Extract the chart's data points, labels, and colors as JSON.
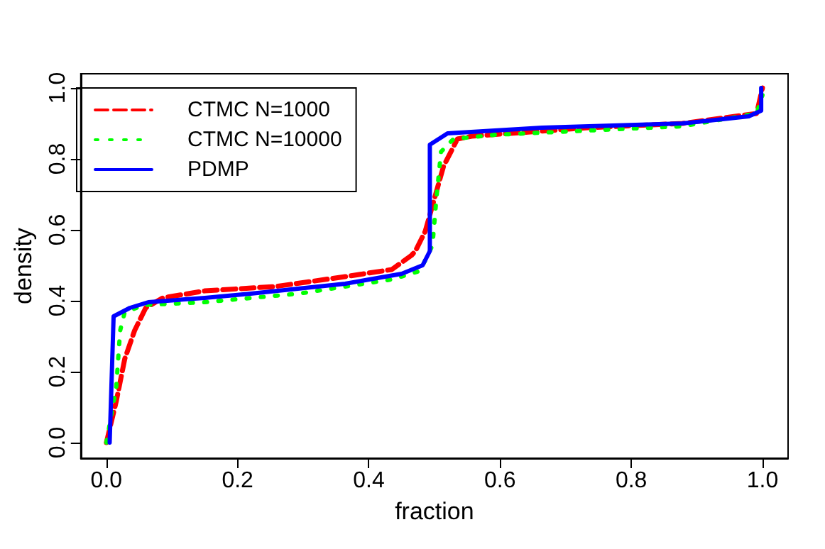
{
  "chart_data": {
    "type": "line",
    "xlabel": "fraction",
    "ylabel": "density",
    "xlim": [
      -0.039,
      1.039
    ],
    "ylim": [
      -0.044,
      1.04
    ],
    "xticks": [
      {
        "value": 0,
        "label": "0.0"
      },
      {
        "value": 0.2,
        "label": "0.2"
      },
      {
        "value": 0.4,
        "label": "0.4"
      },
      {
        "value": 0.6,
        "label": "0.6"
      },
      {
        "value": 0.8,
        "label": "0.8"
      },
      {
        "value": 1,
        "label": "1.0"
      }
    ],
    "yticks": [
      {
        "value": 0,
        "label": "0.0"
      },
      {
        "value": 0.2,
        "label": "0.2"
      },
      {
        "value": 0.4,
        "label": "0.4"
      },
      {
        "value": 0.6,
        "label": "0.6"
      },
      {
        "value": 0.8,
        "label": "0.8"
      },
      {
        "value": 1,
        "label": "1.0"
      }
    ],
    "grid": false,
    "legend": "top left",
    "marker": "none",
    "series": [
      {
        "name": "CTMC N=1000",
        "color": "#ff0000",
        "line_style": "dashed",
        "x": [
          0,
          0.015,
          0.028,
          0.043,
          0.06,
          0.086,
          0.15,
          0.257,
          0.364,
          0.435,
          0.465,
          0.471,
          0.486,
          0.5,
          0.514,
          0.535,
          0.557,
          0.735,
          0.878,
          0.991,
          1.0
        ],
        "values": [
          0,
          0.116,
          0.236,
          0.316,
          0.38,
          0.408,
          0.428,
          0.44,
          0.468,
          0.488,
          0.528,
          0.54,
          0.596,
          0.688,
          0.78,
          0.856,
          0.864,
          0.888,
          0.9,
          0.928,
          1.0
        ]
      },
      {
        "name": "CTMC N=10000",
        "color": "#00ff00",
        "line_style": "dotted",
        "x": [
          0,
          0.015,
          0.021,
          0.028,
          0.058,
          0.15,
          0.293,
          0.435,
          0.478,
          0.497,
          0.503,
          0.51,
          0.529,
          0.593,
          0.735,
          0.878,
          0.991,
          1.0
        ],
        "values": [
          0,
          0.156,
          0.316,
          0.368,
          0.388,
          0.396,
          0.42,
          0.46,
          0.484,
          0.556,
          0.688,
          0.82,
          0.856,
          0.868,
          0.88,
          0.892,
          0.928,
          0.98
        ]
      },
      {
        "name": "PDMP",
        "color": "#0000ff",
        "line_style": "solid",
        "x": [
          0.005,
          0.011,
          0.036,
          0.064,
          0.15,
          0.22,
          0.364,
          0.45,
          0.482,
          0.493,
          0.493,
          0.52,
          0.664,
          0.878,
          0.979,
          0.998,
          0.998
        ],
        "values": [
          0,
          0.356,
          0.38,
          0.396,
          0.408,
          0.42,
          0.448,
          0.476,
          0.5,
          0.54,
          0.84,
          0.872,
          0.888,
          0.9,
          0.92,
          0.936,
          1.0
        ]
      }
    ]
  }
}
